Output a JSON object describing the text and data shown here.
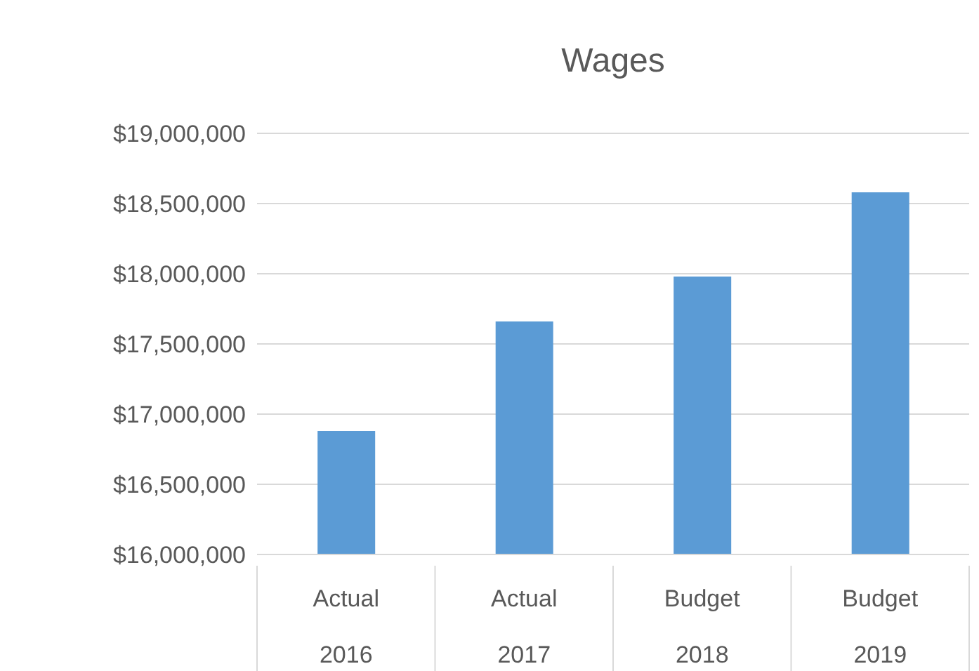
{
  "chart_data": {
    "type": "bar",
    "title": "Wages",
    "categories": [
      "Actual 2016",
      "Actual 2017",
      "Budget 2018",
      "Budget 2019"
    ],
    "values": [
      16880000,
      17660000,
      17980000,
      18580000
    ],
    "color": "#5b9bd5",
    "ylim": [
      16000000,
      19000000
    ],
    "yticks": [
      {
        "value": 16000000,
        "label": "$16,000,000"
      },
      {
        "value": 16500000,
        "label": "$16,500,000"
      },
      {
        "value": 17000000,
        "label": "$17,000,000"
      },
      {
        "value": 17500000,
        "label": "$17,500,000"
      },
      {
        "value": 18000000,
        "label": "$18,000,000"
      },
      {
        "value": 18500000,
        "label": "$18,500,000"
      },
      {
        "value": 19000000,
        "label": "$19,000,000"
      }
    ],
    "grid": "y"
  }
}
